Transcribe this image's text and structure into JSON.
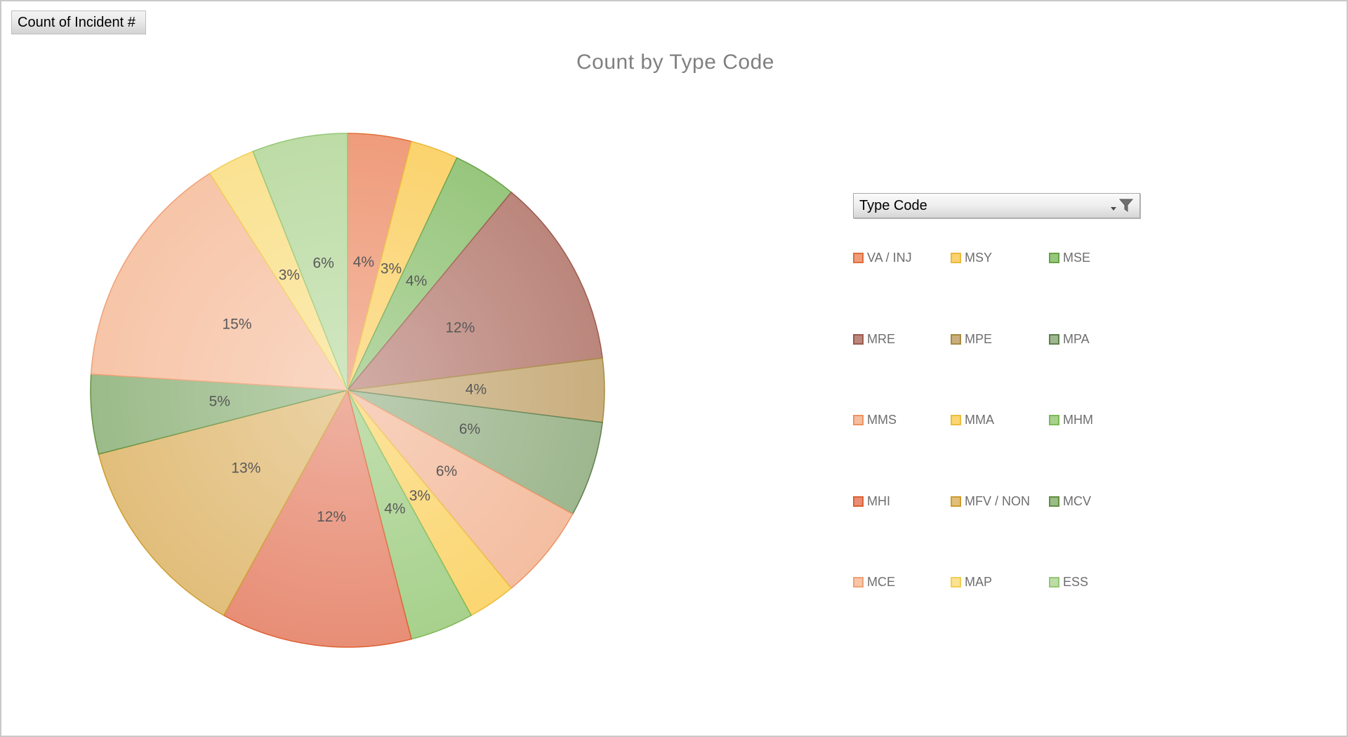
{
  "field_buttons": {
    "value_label": "Count of Incident #"
  },
  "filter": {
    "label": "Type Code",
    "icon": "funnel-icon"
  },
  "chart_data": {
    "type": "pie",
    "title": "Count by Type Code",
    "title_color": "#808080",
    "data_label_color": "#595959",
    "start_angle_deg": 0,
    "direction": "clockwise",
    "legend_position": "right",
    "legend_columns": 3,
    "categories": [
      "VA / INJ",
      "MSY",
      "MSE",
      "MRE",
      "MPE",
      "MPA",
      "MMS",
      "MMA",
      "MHM",
      "MHI",
      "MFV / NON",
      "MCV",
      "MCE",
      "MAP",
      "ESS"
    ],
    "values_pct": [
      4,
      3,
      4,
      12,
      4,
      6,
      6,
      3,
      4,
      12,
      13,
      5,
      15,
      3,
      6
    ],
    "slice_fill_colors": [
      "#EF9C7B",
      "#FBD36E",
      "#97C67D",
      "#BB867C",
      "#C9AE7E",
      "#9EB78F",
      "#F4BEA1",
      "#FBD671",
      "#A7D18C",
      "#E88E76",
      "#E2BE7B",
      "#9BBB89",
      "#F7C5A8",
      "#FAE291",
      "#BDDCA6"
    ],
    "slice_border_colors": [
      "#E06E38",
      "#ECB93B",
      "#67A347",
      "#9D5A4D",
      "#A78B41",
      "#5F7F4E",
      "#EC9362",
      "#EDBC3F",
      "#7CB953",
      "#DD6031",
      "#CE9C2E",
      "#62903F",
      "#F0A176",
      "#F1CD55",
      "#95C675"
    ]
  }
}
